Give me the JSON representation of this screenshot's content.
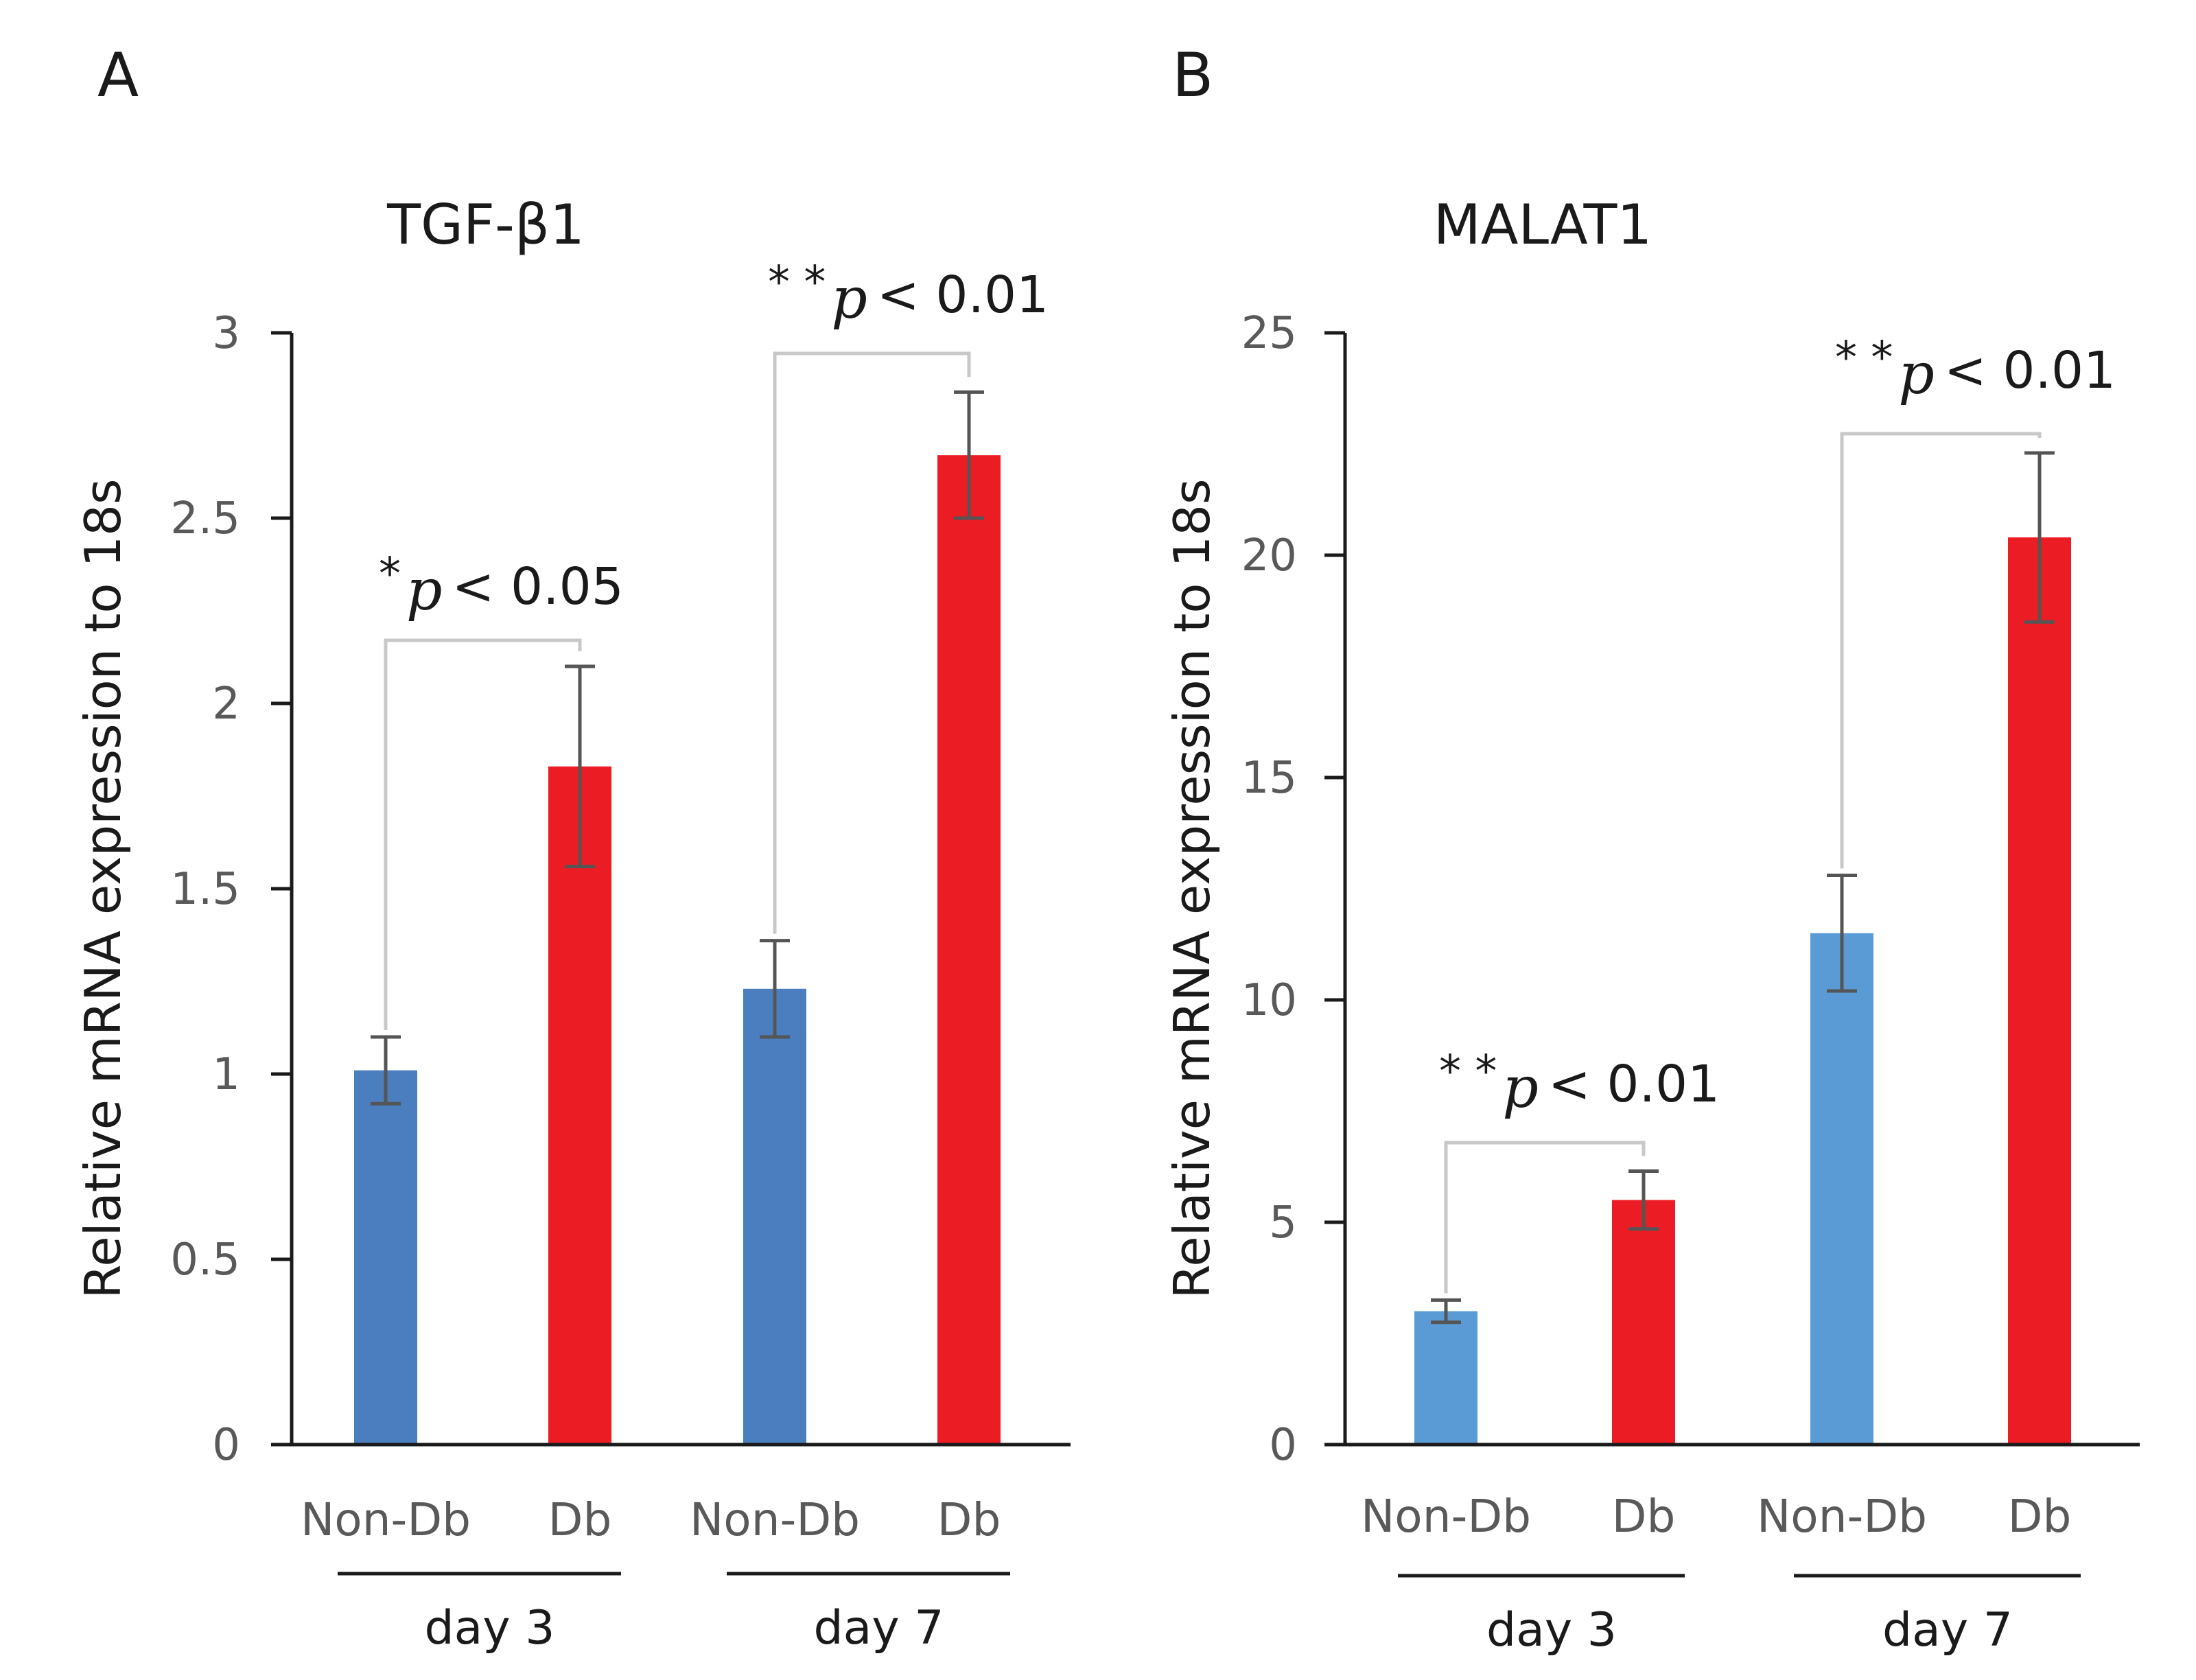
{
  "chart_data": [
    {
      "type": "bar",
      "panel_label": "A",
      "title": "TGF-β1",
      "ylabel": "Relative mRNA expression to 18s",
      "xlabel": "",
      "ylim": [
        0,
        3
      ],
      "yticks": [
        0,
        0.5,
        1,
        1.5,
        2,
        2.5,
        3
      ],
      "ytick_labels": [
        "0",
        "0.5",
        "1",
        "1.5",
        "2",
        "2.5",
        "3"
      ],
      "categories": [
        "Non-Db",
        "Db",
        "Non-Db",
        "Db"
      ],
      "groups": [
        {
          "label": "day 3",
          "members": [
            0,
            1
          ]
        },
        {
          "label": "day 7",
          "members": [
            2,
            3
          ]
        }
      ],
      "values": [
        1.01,
        1.83,
        1.23,
        2.67
      ],
      "errors": [
        0.09,
        0.27,
        0.13,
        0.17
      ],
      "colors": [
        "#4a7ebf",
        "#ec1c24",
        "#4a7ebf",
        "#ec1c24"
      ],
      "significance": [
        {
          "from": 0,
          "to": 1,
          "stars": "*",
          "p_symbol": "p",
          "text": "< 0.05"
        },
        {
          "from": 2,
          "to": 3,
          "stars": "* *",
          "p_symbol": "p",
          "text": "< 0.01"
        }
      ]
    },
    {
      "type": "bar",
      "panel_label": "B",
      "title": "MALAT1",
      "ylabel": "Relative mRNA expression to 18s",
      "xlabel": "",
      "ylim": [
        0,
        25
      ],
      "yticks": [
        0,
        5,
        10,
        15,
        20,
        25
      ],
      "ytick_labels": [
        "0",
        "5",
        "10",
        "15",
        "20",
        "25"
      ],
      "categories": [
        "Non-Db",
        "Db",
        "Non-Db",
        "Db"
      ],
      "groups": [
        {
          "label": "day 3",
          "members": [
            0,
            1
          ]
        },
        {
          "label": "day 7",
          "members": [
            2,
            3
          ]
        }
      ],
      "values": [
        3.0,
        5.5,
        11.5,
        20.4
      ],
      "errors": [
        0.25,
        0.65,
        1.3,
        1.9
      ],
      "colors": [
        "#5b9bd5",
        "#ec1c24",
        "#5b9bd5",
        "#ec1c24"
      ],
      "significance": [
        {
          "from": 0,
          "to": 1,
          "stars": "* *",
          "p_symbol": "p",
          "text": "< 0.01"
        },
        {
          "from": 2,
          "to": 3,
          "stars": "* *",
          "p_symbol": "p",
          "text": "< 0.01"
        }
      ]
    }
  ]
}
